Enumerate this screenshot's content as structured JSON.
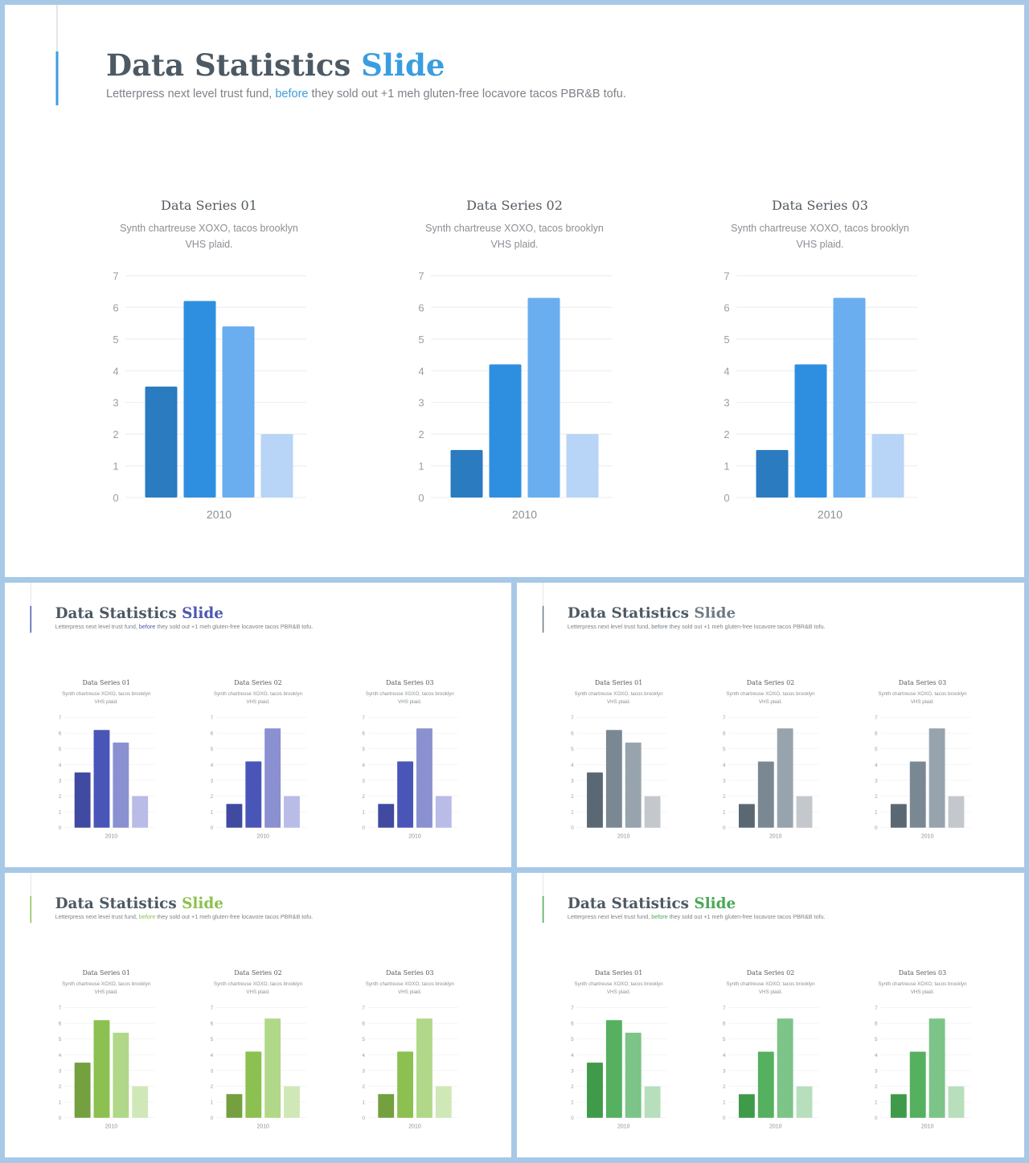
{
  "slides": [
    {
      "title": "Data Statistics ",
      "title_accent": "Slide",
      "accent": "#3b9de0",
      "subtitle_parts": [
        "Letterpress next level trust fund, ",
        "before",
        " they sold out +1 meh gluten-free locavore tacos PBR&B tofu."
      ],
      "charts": [
        {
          "type": "bar",
          "title": "Data Series 01",
          "subtitle": "Synth chartreuse XOXO, tacos brooklyn VHS plaid.",
          "categories": [
            "2010"
          ],
          "series": [
            {
              "color": "#2a7bc0",
              "values": [
                3.5
              ]
            },
            {
              "color": "#2e8fe0",
              "values": [
                6.2
              ]
            },
            {
              "color": "#6aaeef",
              "values": [
                5.4
              ]
            },
            {
              "color": "#b8d4f6",
              "values": [
                2
              ]
            }
          ],
          "ylim": [
            0,
            7
          ],
          "yticks": [
            0,
            1,
            2,
            3,
            4,
            5,
            6,
            7
          ],
          "grid": true
        },
        {
          "type": "bar",
          "title": "Data Series 02",
          "subtitle": "Synth chartreuse XOXO, tacos brooklyn VHS plaid.",
          "categories": [
            "2010"
          ],
          "series": [
            {
              "color": "#2a7bc0",
              "values": [
                1.5
              ]
            },
            {
              "color": "#2e8fe0",
              "values": [
                4.2
              ]
            },
            {
              "color": "#6aaeef",
              "values": [
                6.3
              ]
            },
            {
              "color": "#b8d4f6",
              "values": [
                2
              ]
            }
          ],
          "ylim": [
            0,
            7
          ],
          "yticks": [
            0,
            1,
            2,
            3,
            4,
            5,
            6,
            7
          ],
          "grid": true
        },
        {
          "type": "bar",
          "title": "Data Series 03",
          "subtitle": "Synth chartreuse XOXO, tacos brooklyn VHS plaid.",
          "categories": [
            "2010"
          ],
          "series": [
            {
              "color": "#2a7bc0",
              "values": [
                1.5
              ]
            },
            {
              "color": "#2e8fe0",
              "values": [
                4.2
              ]
            },
            {
              "color": "#6aaeef",
              "values": [
                6.3
              ]
            },
            {
              "color": "#b8d4f6",
              "values": [
                2
              ]
            }
          ],
          "ylim": [
            0,
            7
          ],
          "yticks": [
            0,
            1,
            2,
            3,
            4,
            5,
            6,
            7
          ],
          "grid": true
        }
      ]
    },
    {
      "title": "Data Statistics ",
      "title_accent": "Slide",
      "accent": "#4c58b0",
      "subtitle_parts": [
        "Letterpress next level trust fund, ",
        "before",
        " they sold out +1 meh gluten-free locavore tacos PBR&B tofu."
      ],
      "charts": [
        {
          "type": "bar",
          "title": "Data Series 01",
          "subtitle": "Synth chartreuse XOXO, tacos brooklyn VHS plaid.",
          "categories": [
            "2010"
          ],
          "series": [
            {
              "color": "#3f4aa0",
              "values": [
                3.5
              ]
            },
            {
              "color": "#4a55b8",
              "values": [
                6.2
              ]
            },
            {
              "color": "#8a90d0",
              "values": [
                5.4
              ]
            },
            {
              "color": "#b8bce6",
              "values": [
                2
              ]
            }
          ],
          "ylim": [
            0,
            7
          ],
          "yticks": [
            0,
            1,
            2,
            3,
            4,
            5,
            6,
            7
          ],
          "grid": true
        },
        {
          "type": "bar",
          "title": "Data Series 02",
          "subtitle": "Synth chartreuse XOXO, tacos brooklyn VHS plaid.",
          "categories": [
            "2010"
          ],
          "series": [
            {
              "color": "#3f4aa0",
              "values": [
                1.5
              ]
            },
            {
              "color": "#4a55b8",
              "values": [
                4.2
              ]
            },
            {
              "color": "#8a90d0",
              "values": [
                6.3
              ]
            },
            {
              "color": "#b8bce6",
              "values": [
                2
              ]
            }
          ],
          "ylim": [
            0,
            7
          ],
          "yticks": [
            0,
            1,
            2,
            3,
            4,
            5,
            6,
            7
          ],
          "grid": true
        },
        {
          "type": "bar",
          "title": "Data Series 03",
          "subtitle": "Synth chartreuse XOXO, tacos brooklyn VHS plaid.",
          "categories": [
            "2010"
          ],
          "series": [
            {
              "color": "#3f4aa0",
              "values": [
                1.5
              ]
            },
            {
              "color": "#4a55b8",
              "values": [
                4.2
              ]
            },
            {
              "color": "#8a90d0",
              "values": [
                6.3
              ]
            },
            {
              "color": "#b8bce6",
              "values": [
                2
              ]
            }
          ],
          "ylim": [
            0,
            7
          ],
          "yticks": [
            0,
            1,
            2,
            3,
            4,
            5,
            6,
            7
          ],
          "grid": true
        }
      ]
    },
    {
      "title": "Data Statistics ",
      "title_accent": "Slide",
      "accent": "#6d7b86",
      "subtitle_parts": [
        "Letterpress next level trust fund, ",
        "before",
        " they sold out +1 meh gluten-free locavore tacos PBR&B tofu."
      ],
      "charts": [
        {
          "type": "bar",
          "title": "Data Series 01",
          "subtitle": "Synth chartreuse XOXO, tacos brooklyn VHS plaid.",
          "categories": [
            "2010"
          ],
          "series": [
            {
              "color": "#5a6873",
              "values": [
                3.5
              ]
            },
            {
              "color": "#7a8893",
              "values": [
                6.2
              ]
            },
            {
              "color": "#98a4ad",
              "values": [
                5.4
              ]
            },
            {
              "color": "#c4c8cc",
              "values": [
                2
              ]
            }
          ],
          "ylim": [
            0,
            7
          ],
          "yticks": [
            0,
            1,
            2,
            3,
            4,
            5,
            6,
            7
          ],
          "grid": true
        },
        {
          "type": "bar",
          "title": "Data Series 02",
          "subtitle": "Synth chartreuse XOXO, tacos brooklyn VHS plaid.",
          "categories": [
            "2010"
          ],
          "series": [
            {
              "color": "#5a6873",
              "values": [
                1.5
              ]
            },
            {
              "color": "#7a8893",
              "values": [
                4.2
              ]
            },
            {
              "color": "#98a4ad",
              "values": [
                6.3
              ]
            },
            {
              "color": "#c4c8cc",
              "values": [
                2
              ]
            }
          ],
          "ylim": [
            0,
            7
          ],
          "yticks": [
            0,
            1,
            2,
            3,
            4,
            5,
            6,
            7
          ],
          "grid": true
        },
        {
          "type": "bar",
          "title": "Data Series 03",
          "subtitle": "Synth chartreuse XOXO, tacos brooklyn VHS plaid.",
          "categories": [
            "2010"
          ],
          "series": [
            {
              "color": "#5a6873",
              "values": [
                1.5
              ]
            },
            {
              "color": "#7a8893",
              "values": [
                4.2
              ]
            },
            {
              "color": "#98a4ad",
              "values": [
                6.3
              ]
            },
            {
              "color": "#c4c8cc",
              "values": [
                2
              ]
            }
          ],
          "ylim": [
            0,
            7
          ],
          "yticks": [
            0,
            1,
            2,
            3,
            4,
            5,
            6,
            7
          ],
          "grid": true
        }
      ]
    },
    {
      "title": "Data Statistics ",
      "title_accent": "Slide",
      "accent": "#8cc050",
      "subtitle_parts": [
        "Letterpress next level trust fund, ",
        "before",
        " they sold out +1 meh gluten-free locavore tacos PBR&B tofu."
      ],
      "charts": [
        {
          "type": "bar",
          "title": "Data Series 01",
          "subtitle": "Synth chartreuse XOXO, tacos brooklyn VHS plaid.",
          "categories": [
            "2010"
          ],
          "series": [
            {
              "color": "#74a040",
              "values": [
                3.5
              ]
            },
            {
              "color": "#8cc050",
              "values": [
                6.2
              ]
            },
            {
              "color": "#b0d888",
              "values": [
                5.4
              ]
            },
            {
              "color": "#d0e8b8",
              "values": [
                2
              ]
            }
          ],
          "ylim": [
            0,
            7
          ],
          "yticks": [
            0,
            1,
            2,
            3,
            4,
            5,
            6,
            7
          ],
          "grid": true
        },
        {
          "type": "bar",
          "title": "Data Series 02",
          "subtitle": "Synth chartreuse XOXO, tacos brooklyn VHS plaid.",
          "categories": [
            "2010"
          ],
          "series": [
            {
              "color": "#74a040",
              "values": [
                1.5
              ]
            },
            {
              "color": "#8cc050",
              "values": [
                4.2
              ]
            },
            {
              "color": "#b0d888",
              "values": [
                6.3
              ]
            },
            {
              "color": "#d0e8b8",
              "values": [
                2
              ]
            }
          ],
          "ylim": [
            0,
            7
          ],
          "yticks": [
            0,
            1,
            2,
            3,
            4,
            5,
            6,
            7
          ],
          "grid": true
        },
        {
          "type": "bar",
          "title": "Data Series 03",
          "subtitle": "Synth chartreuse XOXO, tacos brooklyn VHS plaid.",
          "categories": [
            "2010"
          ],
          "series": [
            {
              "color": "#74a040",
              "values": [
                1.5
              ]
            },
            {
              "color": "#8cc050",
              "values": [
                4.2
              ]
            },
            {
              "color": "#b0d888",
              "values": [
                6.3
              ]
            },
            {
              "color": "#d0e8b8",
              "values": [
                2
              ]
            }
          ],
          "ylim": [
            0,
            7
          ],
          "yticks": [
            0,
            1,
            2,
            3,
            4,
            5,
            6,
            7
          ],
          "grid": true
        }
      ]
    },
    {
      "title": "Data Statistics ",
      "title_accent": "Slide",
      "accent": "#4aa855",
      "subtitle_parts": [
        "Letterpress next level trust fund, ",
        "before",
        " they sold out +1 meh gluten-free locavore tacos PBR&B tofu."
      ],
      "charts": [
        {
          "type": "bar",
          "title": "Data Series 01",
          "subtitle": "Synth chartreuse XOXO, tacos brooklyn VHS plaid.",
          "categories": [
            "2010"
          ],
          "series": [
            {
              "color": "#3f9a4a",
              "values": [
                3.5
              ]
            },
            {
              "color": "#55b060",
              "values": [
                6.2
              ]
            },
            {
              "color": "#7cc488",
              "values": [
                5.4
              ]
            },
            {
              "color": "#b8dfbc",
              "values": [
                2
              ]
            }
          ],
          "ylim": [
            0,
            7
          ],
          "yticks": [
            0,
            1,
            2,
            3,
            4,
            5,
            6,
            7
          ],
          "grid": true
        },
        {
          "type": "bar",
          "title": "Data Series 02",
          "subtitle": "Synth chartreuse XOXO, tacos brooklyn VHS plaid.",
          "categories": [
            "2010"
          ],
          "series": [
            {
              "color": "#3f9a4a",
              "values": [
                1.5
              ]
            },
            {
              "color": "#55b060",
              "values": [
                4.2
              ]
            },
            {
              "color": "#7cc488",
              "values": [
                6.3
              ]
            },
            {
              "color": "#b8dfbc",
              "values": [
                2
              ]
            }
          ],
          "ylim": [
            0,
            7
          ],
          "yticks": [
            0,
            1,
            2,
            3,
            4,
            5,
            6,
            7
          ],
          "grid": true
        },
        {
          "type": "bar",
          "title": "Data Series 03",
          "subtitle": "Synth chartreuse XOXO, tacos brooklyn VHS plaid.",
          "categories": [
            "2010"
          ],
          "series": [
            {
              "color": "#3f9a4a",
              "values": [
                1.5
              ]
            },
            {
              "color": "#55b060",
              "values": [
                4.2
              ]
            },
            {
              "color": "#7cc488",
              "values": [
                6.3
              ]
            },
            {
              "color": "#b8dfbc",
              "values": [
                2
              ]
            }
          ],
          "ylim": [
            0,
            7
          ],
          "yticks": [
            0,
            1,
            2,
            3,
            4,
            5,
            6,
            7
          ],
          "grid": true
        }
      ]
    }
  ]
}
